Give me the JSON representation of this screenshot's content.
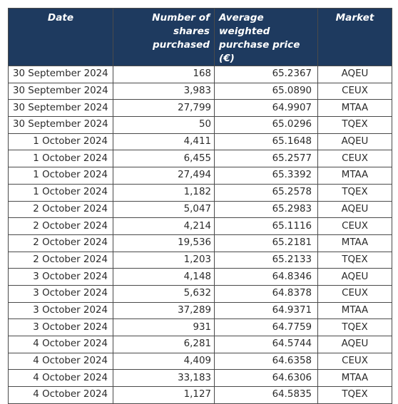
{
  "table": {
    "headers": {
      "date": "Date",
      "shares": [
        "Number of shares",
        "purchased"
      ],
      "price": [
        "Average weighted",
        "purchase price (€)"
      ],
      "market": "Market"
    },
    "rows": [
      {
        "date": "30 September 2024",
        "shares": "168",
        "price": "65.2367",
        "market": "AQEU"
      },
      {
        "date": "30 September 2024",
        "shares": "3,983",
        "price": "65.0890",
        "market": "CEUX"
      },
      {
        "date": "30 September 2024",
        "shares": "27,799",
        "price": "64.9907",
        "market": "MTAA"
      },
      {
        "date": "30 September 2024",
        "shares": "50",
        "price": "65.0296",
        "market": "TQEX"
      },
      {
        "date": "1 October 2024",
        "shares": "4,411",
        "price": "65.1648",
        "market": "AQEU"
      },
      {
        "date": "1 October 2024",
        "shares": "6,455",
        "price": "65.2577",
        "market": "CEUX"
      },
      {
        "date": "1 October 2024",
        "shares": "27,494",
        "price": "65.3392",
        "market": "MTAA"
      },
      {
        "date": "1 October 2024",
        "shares": "1,182",
        "price": "65.2578",
        "market": "TQEX"
      },
      {
        "date": "2 October 2024",
        "shares": "5,047",
        "price": "65.2983",
        "market": "AQEU"
      },
      {
        "date": "2 October 2024",
        "shares": "4,214",
        "price": "65.1116",
        "market": "CEUX"
      },
      {
        "date": "2 October 2024",
        "shares": "19,536",
        "price": "65.2181",
        "market": "MTAA"
      },
      {
        "date": "2 October 2024",
        "shares": "1,203",
        "price": "65.2133",
        "market": "TQEX"
      },
      {
        "date": "3 October 2024",
        "shares": "4,148",
        "price": "64.8346",
        "market": "AQEU"
      },
      {
        "date": "3 October 2024",
        "shares": "5,632",
        "price": "64.8378",
        "market": "CEUX"
      },
      {
        "date": "3 October 2024",
        "shares": "37,289",
        "price": "64.9371",
        "market": "MTAA"
      },
      {
        "date": "3 October 2024",
        "shares": "931",
        "price": "64.7759",
        "market": "TQEX"
      },
      {
        "date": "4 October 2024",
        "shares": "6,281",
        "price": "64.5744",
        "market": "AQEU"
      },
      {
        "date": "4 October 2024",
        "shares": "4,409",
        "price": "64.6358",
        "market": "CEUX"
      },
      {
        "date": "4 October 2024",
        "shares": "33,183",
        "price": "64.6306",
        "market": "MTAA"
      },
      {
        "date": "4 October 2024",
        "shares": "1,127",
        "price": "64.5835",
        "market": "TQEX"
      }
    ]
  },
  "colors": {
    "header_bg": "#1e3a5f",
    "header_text": "#ffffff",
    "border": "#4a4a4a",
    "text": "#2b2b2b"
  }
}
